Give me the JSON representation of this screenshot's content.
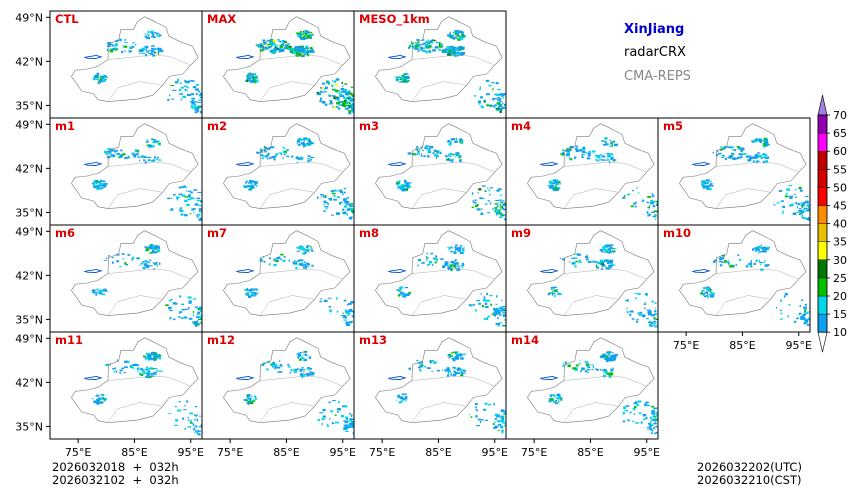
{
  "chart_data": {
    "type": "heatmap",
    "title": "radarCRX",
    "region": "XinJiang",
    "model": "CMA-REPS",
    "panels": [
      {
        "label": "CTL"
      },
      {
        "label": "MAX"
      },
      {
        "label": "MESO_1km"
      },
      {
        "label": "m1"
      },
      {
        "label": "m2"
      },
      {
        "label": "m3"
      },
      {
        "label": "m4"
      },
      {
        "label": "m5"
      },
      {
        "label": "m6"
      },
      {
        "label": "m7"
      },
      {
        "label": "m8"
      },
      {
        "label": "m9"
      },
      {
        "label": "m10"
      },
      {
        "label": "m11"
      },
      {
        "label": "m12"
      },
      {
        "label": "m13"
      },
      {
        "label": "m14"
      }
    ],
    "x_ticks": [
      75,
      85,
      95
    ],
    "x_tick_labels": [
      "75°E",
      "85°E",
      "95°E"
    ],
    "y_ticks": [
      49,
      42,
      35
    ],
    "y_tick_labels": [
      "49°N",
      "42°N",
      "35°N"
    ],
    "xlim": [
      70,
      97
    ],
    "ylim": [
      33,
      50
    ],
    "colorbar": {
      "levels": [
        10,
        15,
        20,
        25,
        30,
        35,
        40,
        45,
        50,
        55,
        60,
        65,
        70
      ],
      "labels": [
        "10",
        "15",
        "20",
        "25",
        "30",
        "35",
        "40",
        "45",
        "50",
        "55",
        "60",
        "65",
        "70"
      ],
      "colors": [
        "#0fa0f0",
        "#00d8e8",
        "#00c000",
        "#007800",
        "#ffff00",
        "#e8c000",
        "#ff8c00",
        "#ff0000",
        "#d40000",
        "#c00000",
        "#ff00ff",
        "#9000b0",
        "#a080e0"
      ]
    },
    "footer": {
      "init_utc": "2026032018  +  032h",
      "init_cst": "2026032102  +  032h",
      "valid_utc": "2026032202(UTC)",
      "valid_cst": "2026032210(CST)"
    }
  },
  "text_colors": {
    "region": "#0000cc",
    "title": "#000000",
    "model": "#888888",
    "panel_label": "#dd0000"
  }
}
